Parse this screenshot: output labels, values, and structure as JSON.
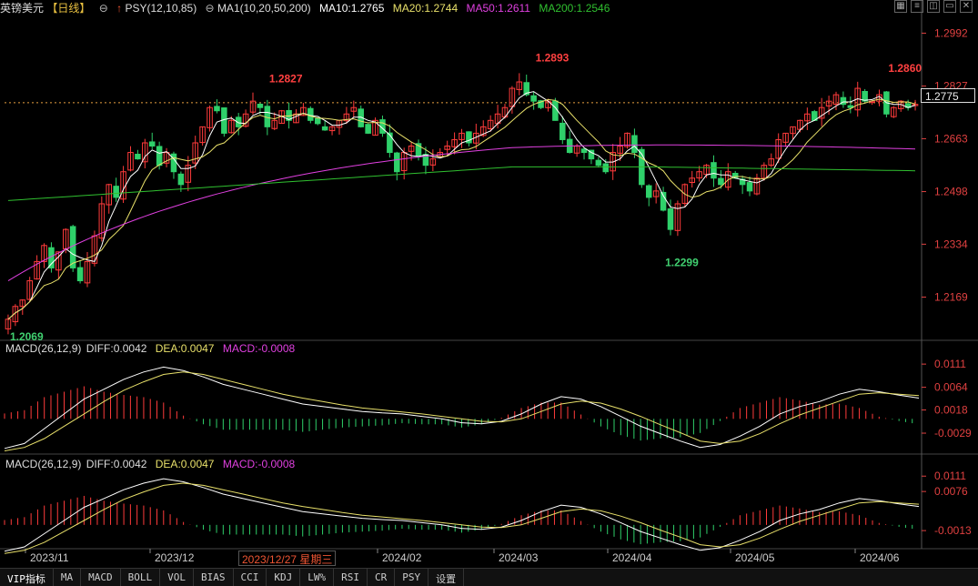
{
  "header": {
    "symbol": "英镑美元",
    "period": "【日线】",
    "psy": "PSY(12,10,85)",
    "ma1": "MA1(10,20,50,200)",
    "ma10": "MA10:1.2765",
    "ma20": "MA20:1.2744",
    "ma50": "MA50:1.2611",
    "ma200": "MA200:1.2546"
  },
  "window_controls": [
    "▦",
    "≡",
    "◫",
    "▭",
    "✕"
  ],
  "current_price": "1.2775",
  "cursor_date": "2023/12/27 星期三",
  "macd_panels": [
    {
      "title": "MACD(26,12,9)",
      "diff": "DIFF:0.0042",
      "dea": "DEA:0.0047",
      "macd": "MACD:-0.0008",
      "ticks": [
        "0.0111",
        "0.0064",
        "0.0018",
        "-0.0029"
      ]
    },
    {
      "title": "MACD(26,12,9)",
      "diff": "DIFF:0.0042",
      "dea": "DEA:0.0047",
      "macd": "MACD:-0.0008",
      "ticks": [
        "0.0111",
        "0.0076",
        "-0.0013"
      ]
    }
  ],
  "tabs": [
    "VIP指标",
    "MA",
    "MACD",
    "BOLL",
    "VOL",
    "BIAS",
    "CCI",
    "KDJ",
    "LW%",
    "RSI",
    "CR",
    "PSY",
    "设置"
  ],
  "colors": {
    "up": "#ff3b3b",
    "down": "#2fd06a",
    "ma10": "#ffffff",
    "ma20": "#e8e06a",
    "ma50": "#e040e0",
    "ma200": "#30c030",
    "label_high": "#ff4040",
    "label_low": "#40d070"
  },
  "chart_data": {
    "type": "candlestick",
    "y_ticks": [
      1.2992,
      1.2827,
      1.2663,
      1.2498,
      1.2334,
      1.2169
    ],
    "ylim": [
      1.204,
      1.305
    ],
    "x_ticks": [
      "2023/11",
      "2023/12",
      "2024/02",
      "2024/03",
      "2024/04",
      "2024/05",
      "2024/06"
    ],
    "annotations": [
      {
        "text": "1.2069",
        "value": 1.2069,
        "type": "low"
      },
      {
        "text": "1.2827",
        "value": 1.2827,
        "type": "high"
      },
      {
        "text": "1.2893",
        "value": 1.2893,
        "type": "high"
      },
      {
        "text": "1.2299",
        "value": 1.2299,
        "type": "low"
      },
      {
        "text": "1.2860",
        "value": 1.286,
        "type": "high"
      }
    ],
    "close_path": [
      1.21,
      1.214,
      1.216,
      1.222,
      1.228,
      1.233,
      1.226,
      1.231,
      1.238,
      1.226,
      1.222,
      1.228,
      1.236,
      1.246,
      1.252,
      1.248,
      1.256,
      1.262,
      1.26,
      1.265,
      1.264,
      1.258,
      1.262,
      1.256,
      1.252,
      1.258,
      1.265,
      1.27,
      1.276,
      1.275,
      1.268,
      1.272,
      1.27,
      1.274,
      1.278,
      1.276,
      1.27,
      1.272,
      1.275,
      1.272,
      1.274,
      1.276,
      1.272,
      1.271,
      1.269,
      1.27,
      1.272,
      1.274,
      1.276,
      1.27,
      1.268,
      1.272,
      1.268,
      1.262,
      1.256,
      1.262,
      1.264,
      1.261,
      1.258,
      1.26,
      1.262,
      1.264,
      1.266,
      1.268,
      1.265,
      1.268,
      1.27,
      1.272,
      1.274,
      1.276,
      1.282,
      1.284,
      1.28,
      1.278,
      1.276,
      1.278,
      1.272,
      1.266,
      1.262,
      1.264,
      1.262,
      1.26,
      1.258,
      1.256,
      1.262,
      1.264,
      1.268,
      1.262,
      1.252,
      1.248,
      1.25,
      1.244,
      1.238,
      1.246,
      1.252,
      1.254,
      1.256,
      1.258,
      1.254,
      1.252,
      1.256,
      1.254,
      1.252,
      1.25,
      1.254,
      1.258,
      1.26,
      1.266,
      1.268,
      1.27,
      1.272,
      1.274,
      1.272,
      1.276,
      1.278,
      1.28,
      1.277,
      1.276,
      1.282,
      1.278,
      1.278,
      1.28,
      1.274,
      1.276,
      1.278,
      1.276,
      1.277
    ],
    "macd": {
      "diff": [
        -0.006,
        -0.005,
        -0.002,
        0.001,
        0.004,
        0.006,
        0.008,
        0.0095,
        0.0105,
        0.0098,
        0.0085,
        0.007,
        0.006,
        0.005,
        0.004,
        0.003,
        0.0025,
        0.002,
        0.0015,
        0.0012,
        0.001,
        0.0005,
        0.0,
        -0.0008,
        -0.001,
        -0.0005,
        0.001,
        0.003,
        0.0045,
        0.004,
        0.0025,
        0.0005,
        -0.0015,
        -0.003,
        -0.0045,
        -0.0058,
        -0.0052,
        -0.0035,
        -0.0015,
        0.001,
        0.0025,
        0.0035,
        0.005,
        0.006,
        0.0055,
        0.0048,
        0.0042
      ],
      "dea": [
        -0.0065,
        -0.0058,
        -0.004,
        -0.0015,
        0.001,
        0.0035,
        0.0058,
        0.0075,
        0.009,
        0.0095,
        0.009,
        0.008,
        0.007,
        0.006,
        0.005,
        0.0042,
        0.0035,
        0.0028,
        0.0022,
        0.0018,
        0.0014,
        0.001,
        0.0005,
        0.0,
        -0.0005,
        -0.0006,
        0.0,
        0.0015,
        0.003,
        0.0036,
        0.0032,
        0.002,
        0.0005,
        -0.0012,
        -0.0028,
        -0.0045,
        -0.005,
        -0.0045,
        -0.003,
        -0.001,
        0.0008,
        0.0022,
        0.0036,
        0.005,
        0.0053,
        0.005,
        0.0047
      ]
    }
  }
}
